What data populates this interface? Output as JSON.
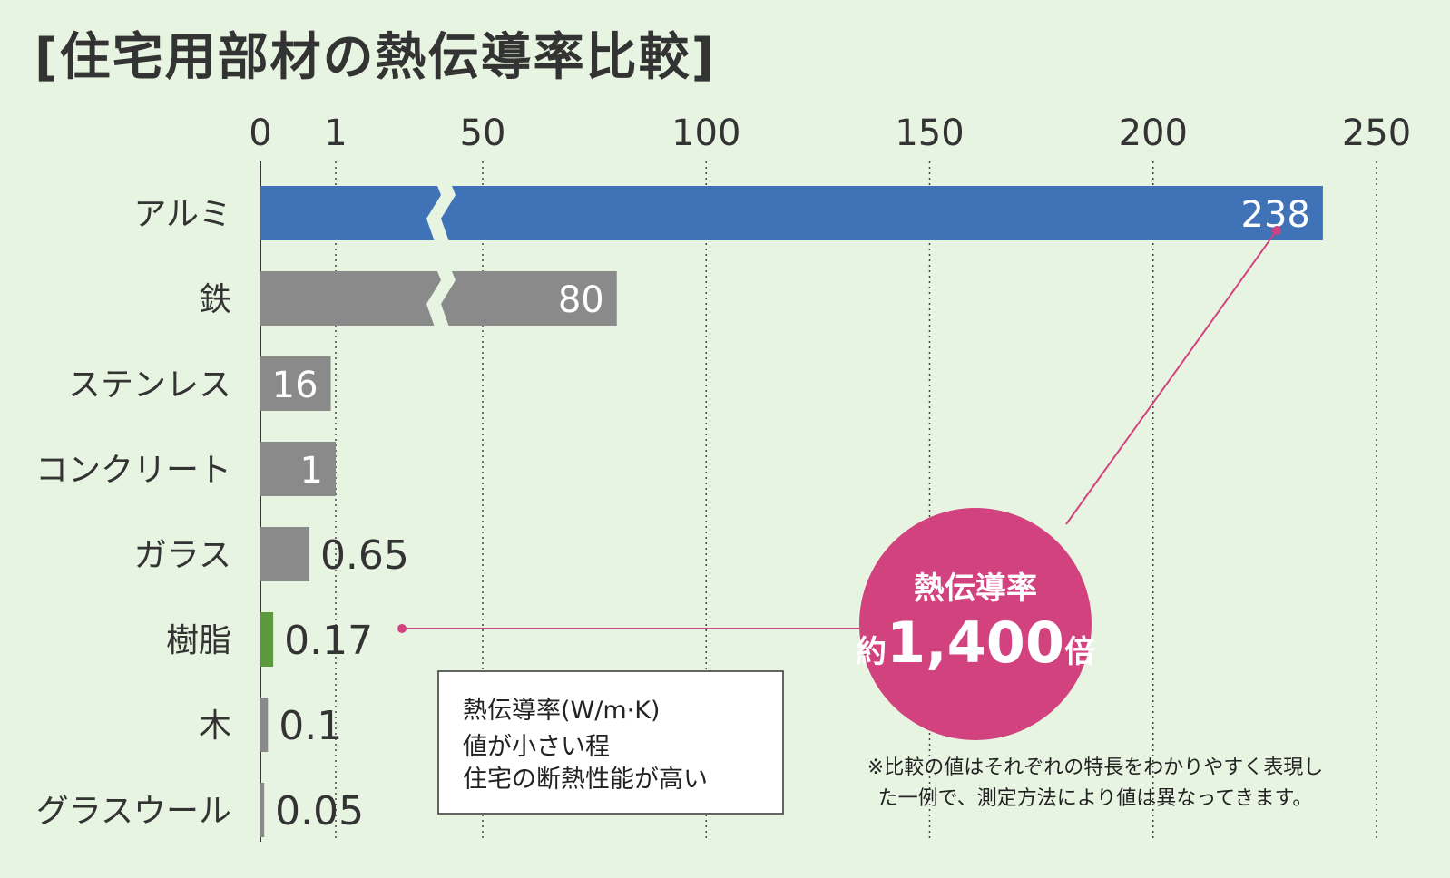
{
  "chart_data": {
    "type": "bar",
    "orientation": "horizontal",
    "title": "[住宅用部材の熱伝導率比較]",
    "categories": [
      "アルミ",
      "鉄",
      "ステンレス",
      "コンクリート",
      "ガラス",
      "樹脂",
      "木",
      "グラスウール"
    ],
    "values": [
      238,
      80,
      16,
      1,
      0.65,
      0.17,
      0.1,
      0.05
    ],
    "value_labels": [
      "238",
      "80",
      "16",
      "1",
      "0.65",
      "0.17",
      "0.1",
      "0.05"
    ],
    "x_ticks": [
      "0",
      "1",
      "50",
      "100",
      "150",
      "200",
      "250"
    ],
    "x_scale": "broken axis: 0 to 1 expanded, 50 to 250 linear, break between 1 and 50",
    "xlim": [
      0,
      250
    ],
    "grid": true,
    "axis_position": "top",
    "colors": {
      "highlight": "#3f72b7",
      "resin": "#5a9a3c",
      "default": "#8a8a8a",
      "accent": "#d2427f",
      "label_highlight": "#3866ad",
      "label_resin": "#4d8a35"
    },
    "annotations": {
      "legend_box": [
        "熱伝導率(W/m·K)",
        "値が小さい程",
        "住宅の断熱性能が高い"
      ],
      "bubble": {
        "line1": "熱伝導率",
        "prefix": "約",
        "number": "1,400",
        "suffix": "倍"
      },
      "footnote": [
        "※比較の値はそれぞれの特長をわかりやすく表現し",
        "た一例で、測定方法により値は異なってきます。"
      ]
    }
  }
}
